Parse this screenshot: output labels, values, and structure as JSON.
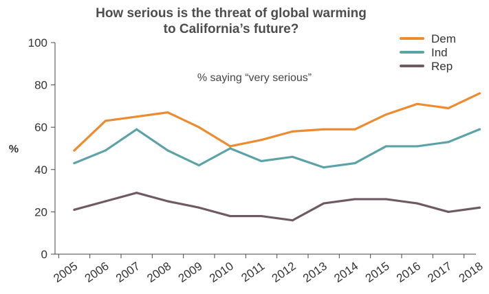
{
  "chart_data": {
    "type": "line",
    "title_lines": [
      "How serious is the threat of global warming",
      "to California’s future?"
    ],
    "annotation": "% saying “very serious”",
    "ylabel": "%",
    "xlabel": "",
    "ylim": [
      0,
      100
    ],
    "yticks": [
      0,
      20,
      40,
      60,
      80,
      100
    ],
    "grid": false,
    "legend_position": "top-right",
    "categories": [
      "2005",
      "2006",
      "2007",
      "2008",
      "2009",
      "2010",
      "2011",
      "2012",
      "2013",
      "2014",
      "2015",
      "2016",
      "2017",
      "2018"
    ],
    "series": [
      {
        "name": "Dem",
        "color": "#ed8b2f",
        "values": [
          49,
          63,
          65,
          67,
          60,
          51,
          54,
          58,
          59,
          59,
          66,
          71,
          69,
          76
        ],
        "end_label": "76"
      },
      {
        "name": "Ind",
        "color": "#5ba3a7",
        "values": [
          43,
          49,
          59,
          49,
          42,
          50,
          44,
          46,
          41,
          43,
          51,
          51,
          53,
          59
        ],
        "end_label": "59"
      },
      {
        "name": "Rep",
        "color": "#6f5a63",
        "values": [
          21,
          25,
          29,
          25,
          22,
          18,
          18,
          16,
          24,
          26,
          26,
          24,
          20,
          22
        ],
        "end_label": "22"
      }
    ]
  }
}
